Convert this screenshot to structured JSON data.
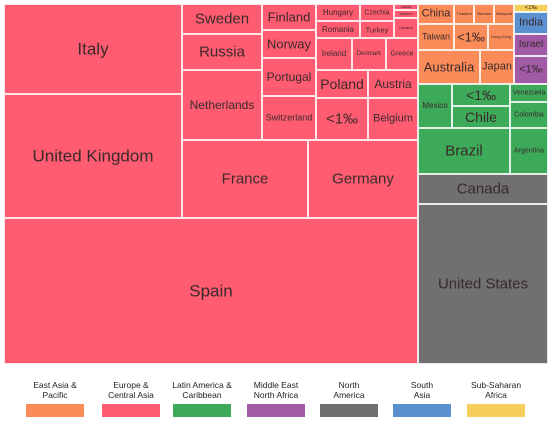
{
  "chart_data": {
    "type": "treemap",
    "groups": [
      {
        "name": "Europe & Central Asia",
        "color": "#ff5c72",
        "tiles": [
          {
            "label": "Italy"
          },
          {
            "label": "United Kingdom"
          },
          {
            "label": "Spain"
          },
          {
            "label": "Sweden"
          },
          {
            "label": "Russia"
          },
          {
            "label": "Netherlands"
          },
          {
            "label": "Finland"
          },
          {
            "label": "Norway"
          },
          {
            "label": "Portugal"
          },
          {
            "label": "Switzerland"
          },
          {
            "label": "Hungary"
          },
          {
            "label": "Romania"
          },
          {
            "label": "Ireland"
          },
          {
            "label": "Czechia"
          },
          {
            "label": "Turkey"
          },
          {
            "label": "Denmark"
          },
          {
            "label": "Greece"
          },
          {
            "label": "Latvia"
          },
          {
            "label": "Iceland"
          },
          {
            "label": "Ukraine"
          },
          {
            "label": "Poland"
          },
          {
            "label": "Austria"
          },
          {
            "label": "<1‰"
          },
          {
            "label": "Belgium"
          },
          {
            "label": "France"
          },
          {
            "label": "Germany"
          }
        ]
      },
      {
        "name": "East Asia & Pacific",
        "color": "#fb8c5a",
        "tiles": [
          {
            "label": "China"
          },
          {
            "label": "Thailand"
          },
          {
            "label": "Vietnam"
          },
          {
            "label": "Malaysia"
          },
          {
            "label": "Taiwan"
          },
          {
            "label": "<1‰"
          },
          {
            "label": "Hong Kong"
          },
          {
            "label": "Australia"
          },
          {
            "label": "Japan"
          }
        ]
      },
      {
        "name": "Latin America & Caribbean",
        "color": "#3daa5a",
        "tiles": [
          {
            "label": "Mexico"
          },
          {
            "label": "<1‰"
          },
          {
            "label": "Chile"
          },
          {
            "label": "Venezuela"
          },
          {
            "label": "Colombia"
          },
          {
            "label": "Brazil"
          },
          {
            "label": "Argentina"
          }
        ]
      },
      {
        "name": "Middle East North Africa",
        "color": "#a05aa6",
        "tiles": [
          {
            "label": "Israel"
          },
          {
            "label": "<1‰"
          }
        ]
      },
      {
        "name": "North America",
        "color": "#707070",
        "tiles": [
          {
            "label": "Canada"
          },
          {
            "label": "United States"
          }
        ]
      },
      {
        "name": "South Asia",
        "color": "#5a8fd0",
        "tiles": [
          {
            "label": "India"
          }
        ]
      },
      {
        "name": "Sub-Saharan Africa",
        "color": "#f5cf5a",
        "tiles": [
          {
            "label": "<1‰"
          }
        ]
      }
    ],
    "legend": {
      "placement": "bottom",
      "items": [
        {
          "label": "East Asia &\nPacific",
          "color": "#fb8c5a"
        },
        {
          "label": "Europe &\nCentral Asia",
          "color": "#ff5c72"
        },
        {
          "label": "Latin America &\nCaribbean",
          "color": "#3daa5a"
        },
        {
          "label": "Middle East\nNorth Africa",
          "color": "#a05aa6"
        },
        {
          "label": "North\nAmerica",
          "color": "#707070"
        },
        {
          "label": "South\nAsia",
          "color": "#5a8fd0"
        },
        {
          "label": "Sub-Saharan\nAfrica",
          "color": "#f5cf5a"
        }
      ]
    }
  }
}
